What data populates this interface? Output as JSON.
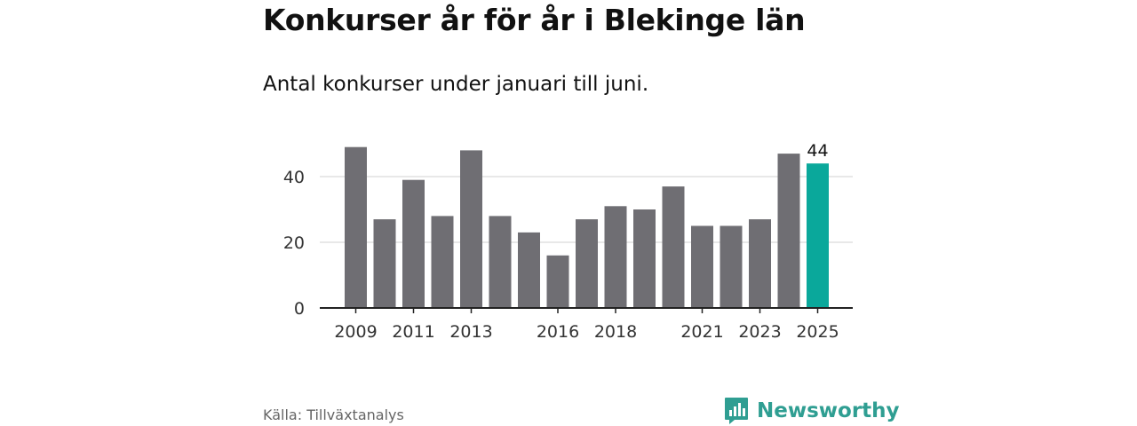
{
  "title": "Konkurser år för år i Blekinge län",
  "subtitle": "Antal konkurser under januari till juni.",
  "source": "Källa: Tillväxtanalys",
  "brand": {
    "name": "Newsworthy",
    "icon": "newsworthy-logo-icon"
  },
  "colors": {
    "bar": "#6f6e73",
    "highlight": "#0aa89b",
    "grid": "#d9d9d9",
    "axis": "#222222",
    "brand": "#2f9e92"
  },
  "chart_data": {
    "type": "bar",
    "categories": [
      "2009",
      "2010",
      "2011",
      "2012",
      "2013",
      "2014",
      "2015",
      "2016",
      "2017",
      "2018",
      "2019",
      "2020",
      "2021",
      "2022",
      "2023",
      "2024",
      "2025"
    ],
    "values": [
      49,
      27,
      39,
      28,
      48,
      28,
      23,
      16,
      27,
      31,
      30,
      37,
      25,
      25,
      27,
      47,
      44
    ],
    "x_tick_labels": [
      "2009",
      "2011",
      "2013",
      "2016",
      "2018",
      "2021",
      "2023",
      "2025"
    ],
    "y_ticks": [
      0,
      20,
      40
    ],
    "ylim": [
      0,
      52
    ],
    "highlight_category": "2025",
    "data_labels": [
      {
        "category": "2025",
        "text": "44"
      }
    ],
    "grid": true
  }
}
